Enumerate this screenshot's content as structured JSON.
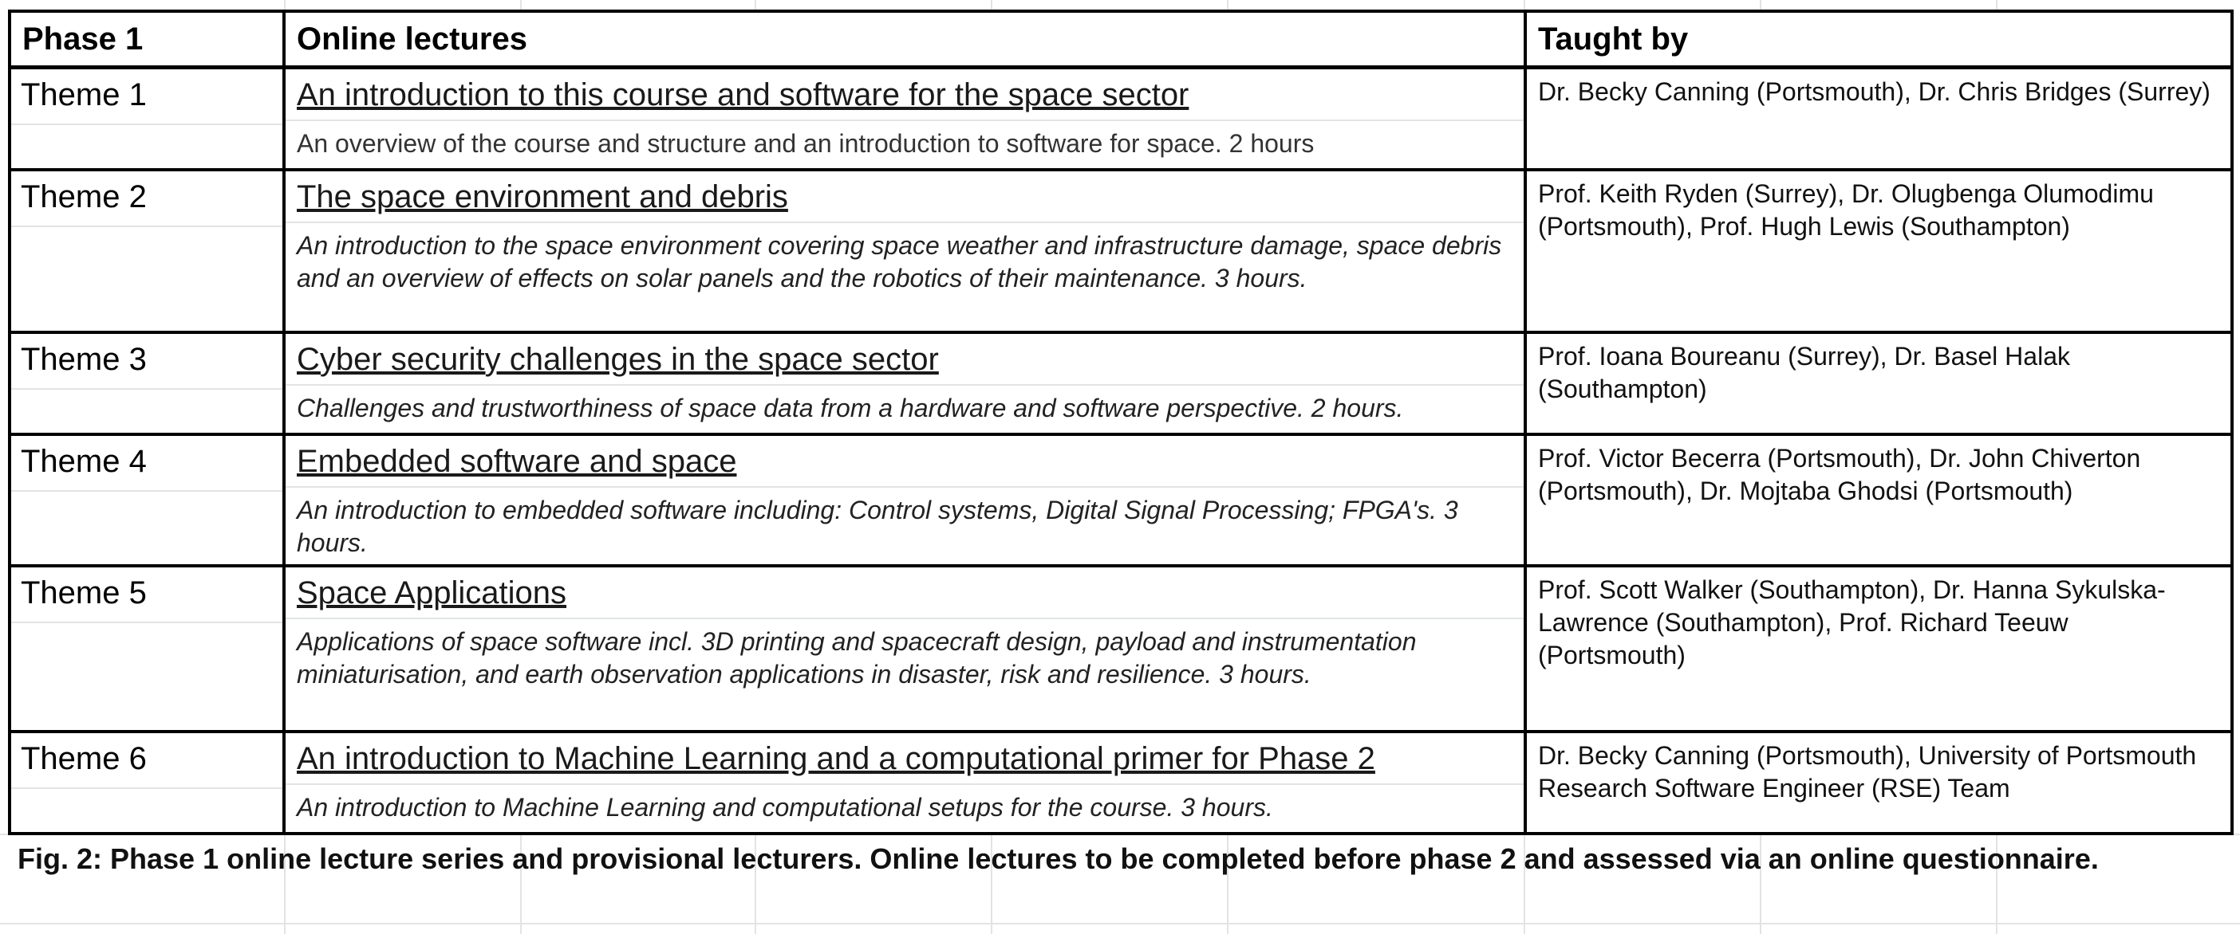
{
  "table": {
    "headers": {
      "phase": "Phase 1",
      "lectures": "Online lectures",
      "taught_by": "Taught by"
    },
    "rows": [
      {
        "theme": "Theme 1",
        "title": "An introduction to this course and software for the space sector",
        "description": "An overview of the course and structure and an introduction to software for space. 2 hours",
        "taught_by": "Dr. Becky Canning (Portsmouth), Dr. Chris Bridges (Surrey)"
      },
      {
        "theme": "Theme 2",
        "title": "The space environment and debris",
        "description": "An introduction to the space environment covering space weather and infrastructure damage, space debris and an overview of effects on solar panels and the robotics of their maintenance. 3 hours.",
        "taught_by": "Prof. Keith Ryden (Surrey), Dr. Olugbenga Olumodimu (Portsmouth), Prof. Hugh Lewis (Southampton)"
      },
      {
        "theme": "Theme 3",
        "title": "Cyber security challenges in the space sector",
        "description": "Challenges and trustworthiness of space data from a hardware and software perspective. 2 hours.",
        "taught_by": "Prof. Ioana Boureanu (Surrey), Dr. Basel Halak (Southampton)"
      },
      {
        "theme": "Theme 4",
        "title": "Embedded software and space",
        "description": "An introduction to embedded software including: Control systems, Digital Signal Processing; FPGA's. 3 hours.",
        "taught_by": "Prof. Victor Becerra (Portsmouth), Dr. John Chiverton (Portsmouth), Dr. Mojtaba Ghodsi (Portsmouth)"
      },
      {
        "theme": "Theme 5",
        "title": "Space Applications",
        "description": "Applications of space software incl. 3D printing and spacecraft design, payload and instrumentation miniaturisation, and earth observation applications in disaster, risk and resilience. 3 hours.",
        "taught_by": "Prof. Scott Walker (Southampton), Dr. Hanna Sykulska-Lawrence (Southampton), Prof. Richard Teeuw (Portsmouth)"
      },
      {
        "theme": "Theme 6",
        "title": "An introduction to Machine Learning and a computational primer for Phase 2",
        "description": "An introduction to Machine Learning and computational setups for the course. 3 hours.",
        "taught_by": "Dr. Becky Canning (Portsmouth), University of Portsmouth Research Software Engineer (RSE) Team"
      }
    ]
  },
  "caption": "Fig. 2: Phase 1 online lecture series and provisional lecturers. Online lectures to be completed before phase 2 and assessed via an online questionnaire.",
  "colors": {
    "border": "#000000",
    "gridline": "#e2e3e3",
    "text": "#000000"
  }
}
